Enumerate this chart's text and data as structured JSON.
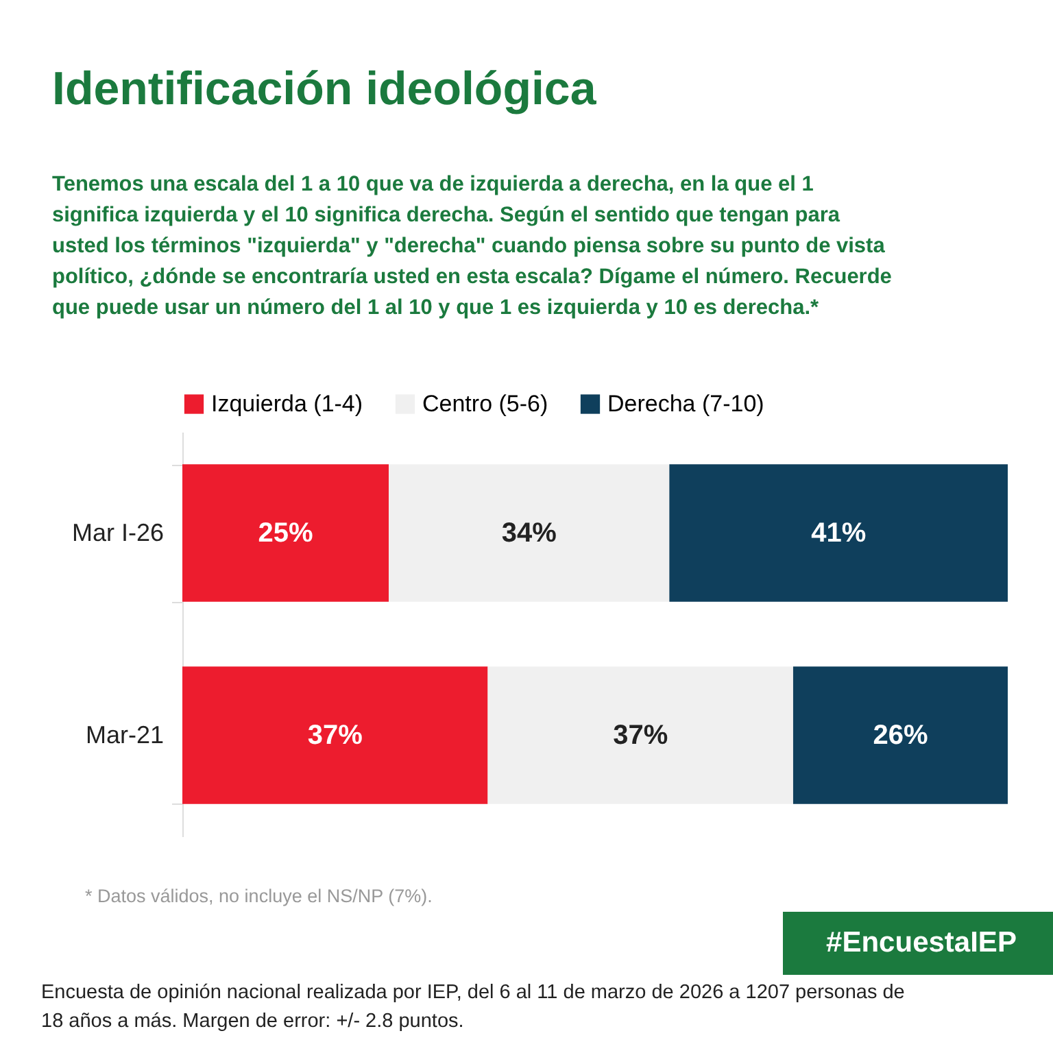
{
  "chart_data": {
    "type": "bar",
    "orientation": "horizontal",
    "stacked": true,
    "title": "Identificación ideológica",
    "subtitle": "Tenemos una escala del 1 a 10 que va de izquierda a derecha, en la que el 1 significa izquierda y el 10 significa derecha. Según el sentido que tengan para usted los términos \"izquierda\" y \"derecha\" cuando piensa sobre su punto de vista político, ¿dónde se encontraría usted en esta escala? Dígame el número. Recuerde que puede usar un número del 1 al 10 y que 1 es izquierda y 10 es derecha.*",
    "categories": [
      "Mar I-26",
      "Mar-21"
    ],
    "series": [
      {
        "name": "Izquierda (1-4)",
        "color": "#ed1c2e",
        "values": [
          25,
          37
        ],
        "value_labels": [
          "25%",
          "37%"
        ]
      },
      {
        "name": "Centro (5-6)",
        "color": "#f0f0f0",
        "values": [
          34,
          37
        ],
        "value_labels": [
          "34%",
          "37%"
        ]
      },
      {
        "name": "Derecha (7-10)",
        "color": "#0f3f5c",
        "values": [
          41,
          26
        ],
        "value_labels": [
          "41%",
          "26%"
        ]
      }
    ],
    "legend": "top",
    "grid": false,
    "annotations": [
      "* Datos válidos, no incluye el NS/NP (7%).",
      "#EncuestaIEP",
      "Encuesta de opinión nacional realizada por IEP, del 6 al 11 de marzo de 2026 a 1207 personas de 18 años a más. Margen de error: +/- 2.8 puntos."
    ]
  }
}
